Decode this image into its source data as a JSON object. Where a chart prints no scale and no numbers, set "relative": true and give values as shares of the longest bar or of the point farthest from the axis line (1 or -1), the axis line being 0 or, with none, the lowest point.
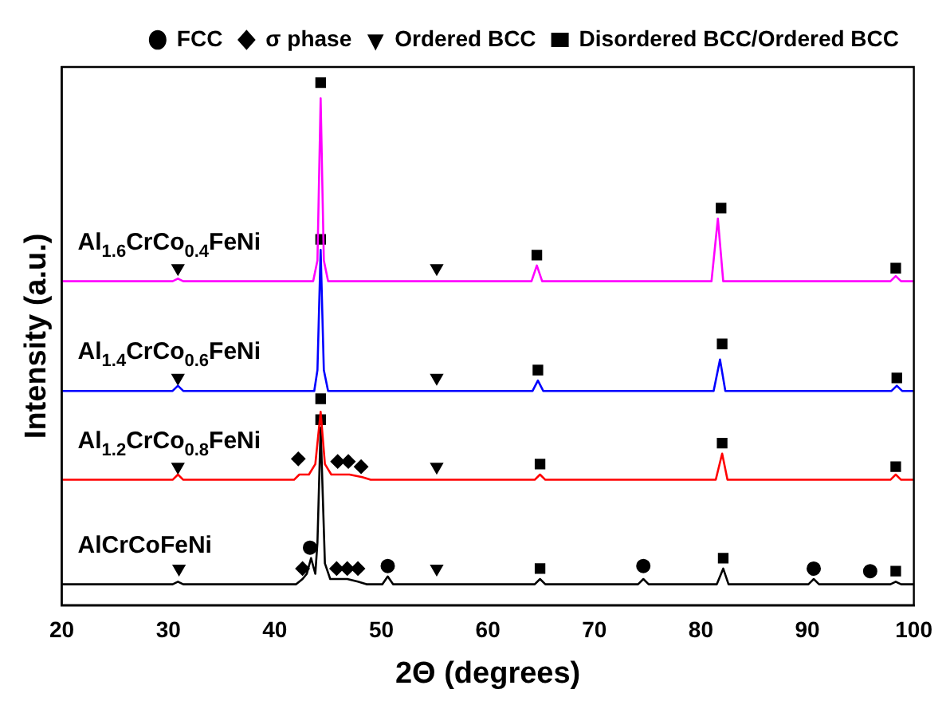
{
  "chart_data": {
    "type": "line",
    "relative": true,
    "xlabel": "2Θ (degrees)",
    "ylabel": "Intensity (a.u.)",
    "xlim": [
      20,
      100
    ],
    "xticks": [
      20,
      30,
      40,
      50,
      60,
      70,
      80,
      90,
      100
    ],
    "legend": "top right",
    "grid": false,
    "marker": "none",
    "line_style": "solid",
    "series": [
      {
        "name": "Al$_{1.6}$CrCo$_{0.4}$FeNi",
        "color": "#ff00ff",
        "x": [
          20,
          30.4,
          30.9,
          31.4,
          43.6,
          44.0,
          44.3,
          44.6,
          45.0,
          55,
          64.1,
          64.6,
          65.1,
          81.0,
          81.6,
          82.1,
          97.8,
          98.3,
          98.8,
          100
        ],
        "values": [
          0.62,
          0.62,
          0.625,
          0.62,
          0.62,
          0.66,
          0.97,
          0.66,
          0.62,
          0.62,
          0.62,
          0.65,
          0.62,
          0.62,
          0.74,
          0.62,
          0.62,
          0.63,
          0.62,
          0.62
        ]
      },
      {
        "name": "Al$_{1.4}$CrCo$_{0.6}$FeNi",
        "color": "#0000ff",
        "x": [
          20,
          30.4,
          30.9,
          31.4,
          43.7,
          44.0,
          44.3,
          44.6,
          45.0,
          55,
          64.2,
          64.7,
          65.2,
          81.2,
          81.8,
          82.3,
          97.9,
          98.4,
          98.9,
          100
        ],
        "values": [
          0.41,
          0.41,
          0.42,
          0.41,
          0.41,
          0.45,
          0.68,
          0.45,
          0.41,
          0.41,
          0.41,
          0.43,
          0.41,
          0.41,
          0.47,
          0.41,
          0.41,
          0.42,
          0.41,
          0.41
        ]
      },
      {
        "name": "Al$_{1.2}$CrCo$_{0.8}$FeNi",
        "color": "#ff0000",
        "x": [
          20,
          30.4,
          30.9,
          31.4,
          41.8,
          42.3,
          43.2,
          43.8,
          44.3,
          44.7,
          45.3,
          46.0,
          47.0,
          48.2,
          49,
          64.4,
          64.9,
          65.4,
          81.4,
          82.0,
          82.5,
          97.8,
          98.3,
          98.8,
          100
        ],
        "values": [
          0.24,
          0.24,
          0.25,
          0.24,
          0.24,
          0.25,
          0.25,
          0.27,
          0.37,
          0.27,
          0.25,
          0.25,
          0.25,
          0.245,
          0.24,
          0.24,
          0.25,
          0.24,
          0.24,
          0.29,
          0.24,
          0.24,
          0.25,
          0.24,
          0.24
        ]
      },
      {
        "name": "AlCrCoFeNi",
        "color": "#000000",
        "x": [
          20,
          30.4,
          30.9,
          31.4,
          42.0,
          42.6,
          43.0,
          43.4,
          43.8,
          44.0,
          44.3,
          44.7,
          45.2,
          45.8,
          46.8,
          47.8,
          48.6,
          50.1,
          50.6,
          51.1,
          64.4,
          64.9,
          65.4,
          74.1,
          74.6,
          75.1,
          81.5,
          82.1,
          82.6,
          90.1,
          90.6,
          91.1,
          97.8,
          98.3,
          98.8,
          100
        ],
        "values": [
          0.04,
          0.04,
          0.045,
          0.04,
          0.04,
          0.05,
          0.06,
          0.09,
          0.06,
          0.12,
          0.34,
          0.08,
          0.05,
          0.05,
          0.05,
          0.045,
          0.04,
          0.04,
          0.055,
          0.04,
          0.04,
          0.05,
          0.04,
          0.04,
          0.05,
          0.04,
          0.04,
          0.07,
          0.04,
          0.04,
          0.05,
          0.04,
          0.04,
          0.045,
          0.04,
          0.04
        ]
      },
      {
        "name": "FCC",
        "type": "scatter",
        "marker": "circle",
        "color": "#000000",
        "x": [
          43.3,
          50.6,
          74.6,
          90.6,
          95.9
        ],
        "values": [
          0.11,
          0.075,
          0.075,
          0.07,
          0.065
        ]
      },
      {
        "name": "σ phase",
        "type": "scatter",
        "marker": "diamond",
        "color": "#000000",
        "x": [
          42.2,
          45.9,
          46.9,
          48.1,
          42.6,
          45.8,
          46.8,
          47.8
        ],
        "values": [
          0.28,
          0.275,
          0.275,
          0.265,
          0.07,
          0.07,
          0.07,
          0.07
        ]
      },
      {
        "name": "Ordered BCC",
        "type": "scatter",
        "marker": "triangle",
        "color": "#000000",
        "x": [
          30.9,
          55.2,
          30.9,
          55.2,
          30.9,
          55.2,
          31,
          55.2
        ],
        "values": [
          0.645,
          0.645,
          0.435,
          0.435,
          0.265,
          0.265,
          0.07,
          0.07
        ]
      },
      {
        "name": "Disordered BCC/Ordered BCC",
        "type": "scatter",
        "marker": "square",
        "color": "#000000",
        "x": [
          44.3,
          64.6,
          81.9,
          98.3,
          44.3,
          64.7,
          82,
          98.4,
          44.3,
          64.9,
          82,
          98.3,
          44.3,
          64.9,
          82.1,
          98.3
        ],
        "values": [
          1.0,
          0.67,
          0.76,
          0.645,
          0.7,
          0.45,
          0.5,
          0.435,
          0.395,
          0.27,
          0.31,
          0.265,
          0.355,
          0.07,
          0.09,
          0.065
        ]
      }
    ]
  }
}
